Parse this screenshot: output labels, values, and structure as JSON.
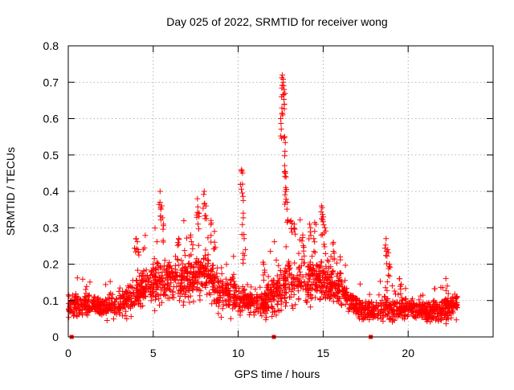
{
  "chart_data": {
    "type": "scatter",
    "title": "Day 025 of 2022, SRMTID for receiver wong",
    "xlabel": "GPS time / hours",
    "ylabel": "SRMTID / TECUs",
    "xlim": [
      0,
      25
    ],
    "ylim": [
      0,
      0.8
    ],
    "x_ticks": [
      0,
      5,
      10,
      15,
      20
    ],
    "x_tick_labels": [
      "0",
      "5",
      "10",
      "15",
      "20"
    ],
    "y_ticks": [
      0,
      0.1,
      0.2,
      0.3,
      0.4,
      0.5,
      0.6,
      0.7,
      0.8
    ],
    "y_tick_labels": [
      "0",
      "0.1",
      "0.2",
      "0.3",
      "0.4",
      "0.5",
      "0.6",
      "0.7",
      "0.8"
    ],
    "grid": true,
    "marker": "+",
    "marker_color": "#ff0000",
    "envelope": {
      "hours": [
        0,
        1,
        2,
        3,
        4,
        5,
        6,
        7,
        8,
        9,
        10,
        11,
        12,
        13,
        14,
        15,
        16,
        17,
        18,
        19,
        20,
        21,
        22,
        22.9
      ],
      "base": [
        0.09,
        0.09,
        0.08,
        0.09,
        0.12,
        0.15,
        0.16,
        0.15,
        0.18,
        0.12,
        0.11,
        0.09,
        0.11,
        0.15,
        0.16,
        0.16,
        0.12,
        0.08,
        0.07,
        0.08,
        0.08,
        0.07,
        0.07,
        0.09
      ],
      "spread": [
        0.03,
        0.03,
        0.03,
        0.04,
        0.05,
        0.06,
        0.06,
        0.06,
        0.07,
        0.05,
        0.05,
        0.04,
        0.05,
        0.07,
        0.07,
        0.06,
        0.05,
        0.03,
        0.03,
        0.04,
        0.03,
        0.03,
        0.03,
        0.03
      ]
    },
    "spikes": [
      {
        "x": 4.0,
        "y": 0.27
      },
      {
        "x": 4.1,
        "y": 0.24
      },
      {
        "x": 5.4,
        "y": 0.4
      },
      {
        "x": 5.5,
        "y": 0.36
      },
      {
        "x": 5.6,
        "y": 0.31
      },
      {
        "x": 6.5,
        "y": 0.27
      },
      {
        "x": 7.2,
        "y": 0.28
      },
      {
        "x": 7.6,
        "y": 0.38
      },
      {
        "x": 7.7,
        "y": 0.34
      },
      {
        "x": 8.0,
        "y": 0.4
      },
      {
        "x": 8.1,
        "y": 0.36
      },
      {
        "x": 8.4,
        "y": 0.32
      },
      {
        "x": 8.6,
        "y": 0.29
      },
      {
        "x": 10.2,
        "y": 0.46
      },
      {
        "x": 10.25,
        "y": 0.42
      },
      {
        "x": 10.3,
        "y": 0.34
      },
      {
        "x": 10.35,
        "y": 0.27
      },
      {
        "x": 11.5,
        "y": 0.2
      },
      {
        "x": 12.5,
        "y": 0.6
      },
      {
        "x": 12.55,
        "y": 0.66
      },
      {
        "x": 12.6,
        "y": 0.72
      },
      {
        "x": 12.65,
        "y": 0.7
      },
      {
        "x": 12.7,
        "y": 0.68
      },
      {
        "x": 12.72,
        "y": 0.55
      },
      {
        "x": 12.75,
        "y": 0.51
      },
      {
        "x": 12.78,
        "y": 0.45
      },
      {
        "x": 12.8,
        "y": 0.4
      },
      {
        "x": 12.9,
        "y": 0.37
      },
      {
        "x": 13.1,
        "y": 0.32
      },
      {
        "x": 13.3,
        "y": 0.31
      },
      {
        "x": 13.8,
        "y": 0.28
      },
      {
        "x": 14.2,
        "y": 0.31
      },
      {
        "x": 14.5,
        "y": 0.29
      },
      {
        "x": 14.9,
        "y": 0.36
      },
      {
        "x": 15.0,
        "y": 0.33
      },
      {
        "x": 15.1,
        "y": 0.3
      },
      {
        "x": 15.6,
        "y": 0.26
      },
      {
        "x": 16.0,
        "y": 0.22
      },
      {
        "x": 18.7,
        "y": 0.27
      },
      {
        "x": 18.8,
        "y": 0.24
      },
      {
        "x": 18.9,
        "y": 0.2
      },
      {
        "x": 19.5,
        "y": 0.16
      },
      {
        "x": 22.3,
        "y": 0.14
      }
    ],
    "zero_points": [
      {
        "x": 0.2,
        "y": 0
      },
      {
        "x": 12.1,
        "y": 0
      },
      {
        "x": 17.8,
        "y": 0
      }
    ]
  }
}
